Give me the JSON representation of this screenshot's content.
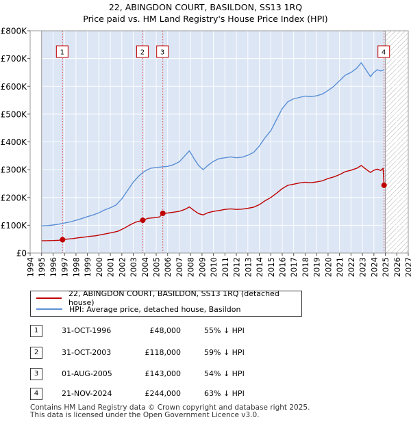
{
  "title_line1": "22, ABINGDON COURT, BASILDON, SS13 1RQ",
  "title_line2": "Price paid vs. HM Land Registry's House Price Index (HPI)",
  "colors": {
    "price_paid": "#c00000",
    "hpi": "#5a8fd6",
    "shade": "#dce6f5",
    "hatch": "#aaaaaa",
    "marker_line": "#e06060"
  },
  "chart_data": {
    "type": "line",
    "title": "Price paid vs. HM Land Registry's House Price Index (HPI)",
    "xlabel": "",
    "ylabel": "",
    "xlim": [
      1994,
      2027
    ],
    "ylim": [
      0,
      800000
    ],
    "y_ticks": [
      0,
      100000,
      200000,
      300000,
      400000,
      500000,
      600000,
      700000,
      800000
    ],
    "y_tick_labels": [
      "£0",
      "£100K",
      "£200K",
      "£300K",
      "£400K",
      "£500K",
      "£600K",
      "£700K",
      "£800K"
    ],
    "x_ticks": [
      1994,
      1995,
      1996,
      1997,
      1998,
      1999,
      2000,
      2001,
      2002,
      2003,
      2004,
      2005,
      2006,
      2007,
      2008,
      2009,
      2010,
      2011,
      2012,
      2013,
      2014,
      2015,
      2016,
      2017,
      2018,
      2019,
      2020,
      2021,
      2022,
      2023,
      2024,
      2025,
      2026,
      2027
    ],
    "shaded_range": [
      1995.0,
      2025.0
    ],
    "hatched_after": 2025.0,
    "series": [
      {
        "name": "HPI: Average price, detached house, Basildon",
        "x": [
          1995.0,
          1995.5,
          1996.0,
          1996.5,
          1997.0,
          1997.5,
          1998.0,
          1998.5,
          1999.0,
          1999.5,
          2000.0,
          2000.5,
          2001.0,
          2001.5,
          2002.0,
          2002.5,
          2003.0,
          2003.5,
          2004.0,
          2004.5,
          2005.0,
          2005.5,
          2006.0,
          2006.5,
          2007.0,
          2007.5,
          2007.9,
          2008.3,
          2008.7,
          2009.1,
          2009.5,
          2010.0,
          2010.5,
          2011.0,
          2011.5,
          2012.0,
          2012.5,
          2013.0,
          2013.5,
          2014.0,
          2014.5,
          2015.0,
          2015.5,
          2016.0,
          2016.5,
          2017.0,
          2017.5,
          2018.0,
          2018.5,
          2019.0,
          2019.5,
          2020.0,
          2020.5,
          2021.0,
          2021.5,
          2022.0,
          2022.5,
          2022.9,
          2023.3,
          2023.7,
          2024.0,
          2024.3,
          2024.6,
          2024.9
        ],
        "values": [
          98000,
          99000,
          101000,
          104000,
          108000,
          112000,
          118000,
          124000,
          131000,
          137000,
          145000,
          155000,
          163000,
          173000,
          195000,
          225000,
          255000,
          278000,
          295000,
          305000,
          308000,
          310000,
          312000,
          318000,
          328000,
          350000,
          368000,
          340000,
          315000,
          300000,
          315000,
          330000,
          340000,
          343000,
          346000,
          343000,
          345000,
          352000,
          362000,
          385000,
          415000,
          440000,
          480000,
          520000,
          545000,
          555000,
          560000,
          565000,
          563000,
          566000,
          572000,
          585000,
          600000,
          620000,
          640000,
          650000,
          665000,
          685000,
          660000,
          635000,
          650000,
          660000,
          655000,
          660000
        ]
      },
      {
        "name": "22, ABINGDON COURT, BASILDON, SS13 1RQ (detached house)",
        "x": [
          1995.0,
          1995.5,
          1996.0,
          1996.5,
          1996.83,
          1997.2,
          1997.7,
          1998.2,
          1998.7,
          1999.2,
          1999.7,
          2000.2,
          2000.7,
          2001.2,
          2001.7,
          2002.2,
          2002.7,
          2003.2,
          2003.83,
          2004.3,
          2004.8,
          2005.3,
          2005.58,
          2006.0,
          2006.5,
          2007.0,
          2007.5,
          2007.9,
          2008.3,
          2008.7,
          2009.1,
          2009.5,
          2010.0,
          2010.5,
          2011.0,
          2011.5,
          2012.0,
          2012.5,
          2013.0,
          2013.5,
          2014.0,
          2014.5,
          2015.0,
          2015.5,
          2016.0,
          2016.5,
          2017.0,
          2017.5,
          2018.0,
          2018.5,
          2019.0,
          2019.5,
          2020.0,
          2020.5,
          2021.0,
          2021.5,
          2022.0,
          2022.5,
          2022.9,
          2023.3,
          2023.7,
          2024.0,
          2024.3,
          2024.6,
          2024.8,
          2024.89
        ],
        "values": [
          44000,
          44500,
          45000,
          46000,
          48000,
          50000,
          52000,
          55000,
          57000,
          60000,
          62000,
          66000,
          70000,
          74000,
          79000,
          89000,
          101000,
          111000,
          118000,
          125000,
          127000,
          130000,
          143000,
          144000,
          147000,
          150000,
          157000,
          166000,
          153000,
          142000,
          137000,
          145000,
          150000,
          153000,
          157000,
          159000,
          157000,
          158000,
          161000,
          165000,
          174000,
          188000,
          200000,
          215000,
          232000,
          244000,
          248000,
          252000,
          255000,
          253000,
          256000,
          260000,
          268000,
          274000,
          282000,
          293000,
          298000,
          305000,
          315000,
          302000,
          290000,
          298000,
          302000,
          297000,
          305000,
          244000
        ]
      }
    ],
    "transactions": [
      {
        "num": "1",
        "x": 1996.83,
        "value": 48000,
        "date": "31-OCT-1996",
        "price": "£48,000",
        "hpi": "55% ↓ HPI"
      },
      {
        "num": "2",
        "x": 2003.83,
        "value": 118000,
        "date": "31-OCT-2003",
        "price": "£118,000",
        "hpi": "59% ↓ HPI"
      },
      {
        "num": "3",
        "x": 2005.58,
        "value": 143000,
        "date": "01-AUG-2005",
        "price": "£143,000",
        "hpi": "54% ↓ HPI"
      },
      {
        "num": "4",
        "x": 2024.89,
        "value": 244000,
        "date": "21-NOV-2024",
        "price": "£244,000",
        "hpi": "63% ↓ HPI"
      }
    ]
  },
  "legend": {
    "price_paid_label": "22, ABINGDON COURT, BASILDON, SS13 1RQ (detached house)",
    "hpi_label": "HPI: Average price, detached house, Basildon"
  },
  "footer": {
    "line1": "Contains HM Land Registry data © Crown copyright and database right 2025.",
    "line2": "This data is licensed under the Open Government Licence v3.0."
  }
}
